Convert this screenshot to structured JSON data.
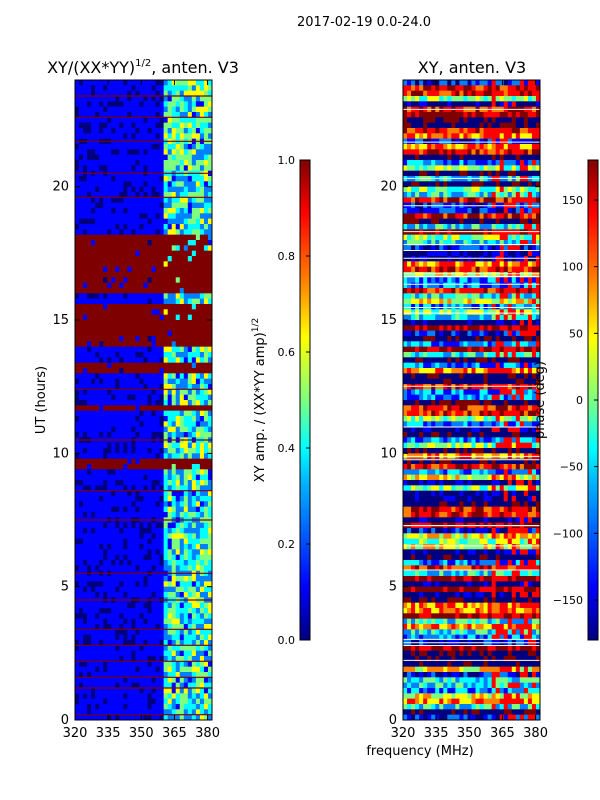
{
  "suptitle": "2017-02-19 0.0-24.0",
  "shared_xlabel": "frequency (MHz)",
  "colormap": [
    "#00007f",
    "#0000ff",
    "#007fff",
    "#00ffff",
    "#7fff7f",
    "#ffff00",
    "#ff7f00",
    "#ff0000",
    "#7f0000"
  ],
  "chart_data": [
    {
      "type": "heatmap",
      "title_main": "XY/(XX*YY)",
      "title_exp": "1/2",
      "title_tail": ", anten. V3",
      "xlabel": "",
      "ylabel": "UT (hours)",
      "xlim": [
        320,
        382
      ],
      "ylim": [
        0,
        24
      ],
      "x_ticks": [
        320,
        335,
        350,
        365,
        380
      ],
      "y_ticks": [
        0,
        5,
        10,
        15,
        20
      ],
      "colorbar": {
        "label_main": "XY amp. / (XX*YY amp)",
        "label_exp": "1/2",
        "range": [
          0.0,
          1.0
        ],
        "ticks": [
          "0.0",
          "0.2",
          "0.4",
          "0.6",
          "0.8",
          "1.0"
        ]
      },
      "bright_band_start_mhz": 360,
      "saturated_hours": [
        [
          13.0,
          13.3
        ],
        [
          14.0,
          15.6
        ],
        [
          16.0,
          17.5
        ],
        [
          17.7,
          18.2
        ],
        [
          9.5,
          9.7
        ],
        [
          11.6,
          11.8
        ]
      ],
      "flag_lines_hours": [
        0.2,
        1.2,
        1.6,
        2.2,
        2.8,
        3.4,
        4.5,
        5.5,
        7.5,
        8.6,
        10.5,
        12.4,
        19.6,
        20.5,
        21.7,
        22.6,
        23.4
      ]
    },
    {
      "type": "heatmap",
      "title_main": "XY, anten. V3",
      "xlabel": "",
      "ylabel": "",
      "xlim": [
        320,
        382
      ],
      "ylim": [
        0,
        24
      ],
      "x_ticks": [
        320,
        335,
        350,
        365,
        380
      ],
      "y_ticks": [
        0,
        5,
        10,
        15,
        20
      ],
      "colorbar": {
        "label": "phase (deg)",
        "range": [
          -180,
          180
        ],
        "ticks": [
          "−150",
          "−100",
          "−50",
          "0",
          "50",
          "100",
          "150"
        ],
        "tick_values": [
          -150,
          -100,
          -50,
          0,
          50,
          100,
          150
        ]
      }
    }
  ]
}
